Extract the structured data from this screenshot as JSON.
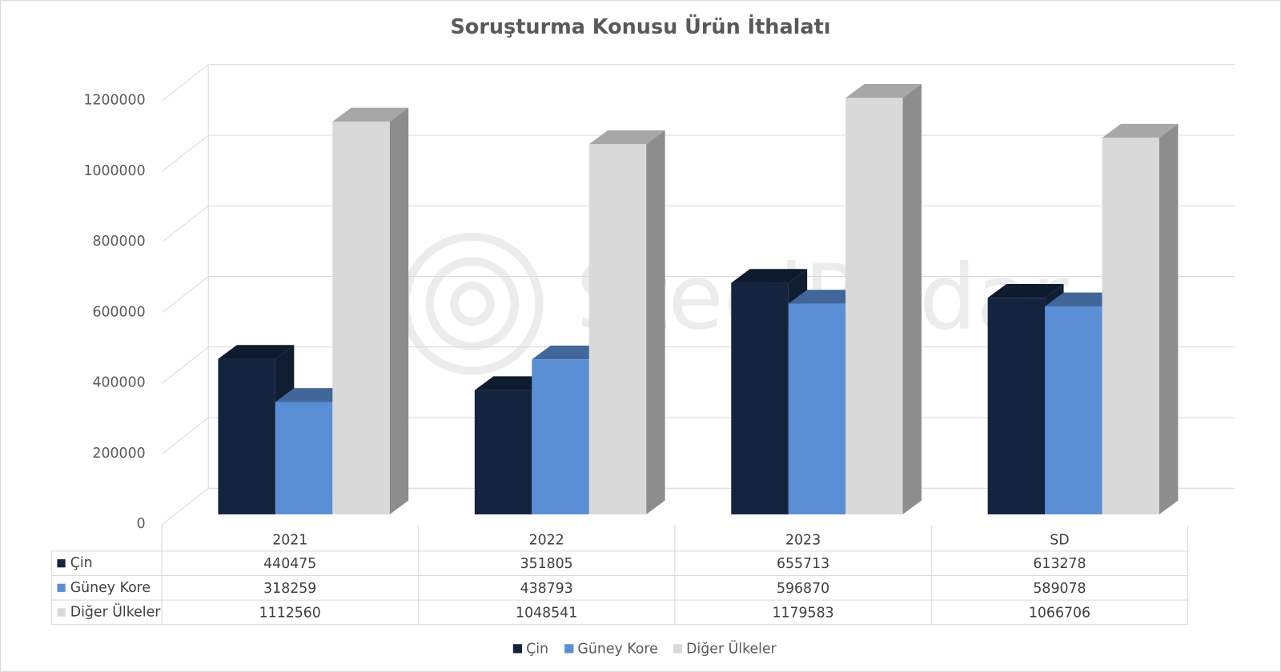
{
  "chart_data": {
    "type": "bar3d",
    "title": "Soruşturma Konusu Ürün İthalatı",
    "watermark": "SteelRadar",
    "categories": [
      "2021",
      "2022",
      "2023",
      "SD"
    ],
    "series": [
      {
        "name": "Çin",
        "color": "#14243f",
        "values": [
          440475,
          351805,
          655713,
          613278
        ]
      },
      {
        "name": "Güney Kore",
        "color": "#5a8fd6",
        "values": [
          318259,
          438793,
          596870,
          589078
        ]
      },
      {
        "name": "Diğer Ülkeler",
        "color": "#d9d9d9",
        "values": [
          1112560,
          1048541,
          1179583,
          1066706
        ]
      }
    ],
    "ylim": [
      0,
      1200000
    ],
    "yticks": [
      0,
      200000,
      400000,
      600000,
      800000,
      1000000,
      1200000
    ],
    "grid": true,
    "data_table": true,
    "legend": "bottom"
  }
}
